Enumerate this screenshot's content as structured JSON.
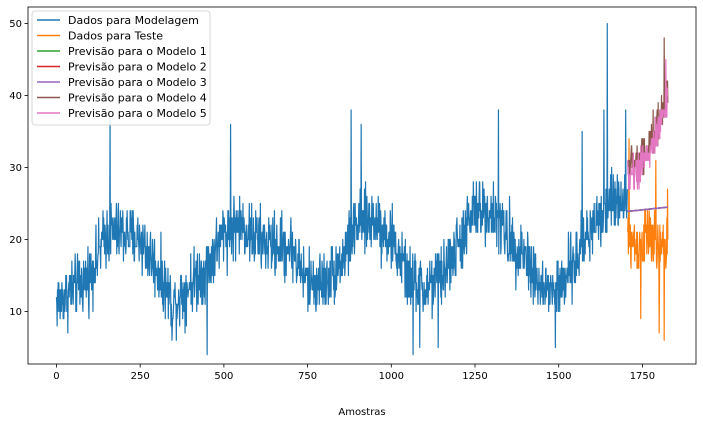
{
  "chart_data": {
    "type": "line",
    "title": "",
    "xlabel": "Amostras",
    "ylabel": "",
    "xlim": [
      -85,
      1910
    ],
    "ylim": [
      2.7,
      52.3
    ],
    "xticks": [
      0,
      250,
      500,
      750,
      1000,
      1250,
      1500,
      1750
    ],
    "yticks": [
      10,
      20,
      30,
      40,
      50
    ],
    "grid": false,
    "legend_position": "top-left",
    "series": [
      {
        "name": "Dados para Modelagem",
        "color": "#1f77b4",
        "x_range": [
          0,
          1705
        ],
        "trend_x": [
          0,
          100,
          150,
          200,
          250,
          300,
          350,
          400,
          450,
          500,
          550,
          600,
          650,
          700,
          750,
          800,
          850,
          900,
          950,
          1000,
          1050,
          1100,
          1150,
          1200,
          1250,
          1300,
          1350,
          1400,
          1450,
          1500,
          1550,
          1600,
          1650,
          1705
        ],
        "trend_y": [
          11,
          15,
          21,
          21,
          20,
          16,
          11,
          14,
          16,
          21,
          22,
          20,
          19,
          19,
          14,
          14,
          17,
          22,
          23,
          20,
          15,
          13,
          15,
          19,
          24,
          24,
          20,
          18,
          13,
          13,
          17,
          22,
          25,
          26
        ],
        "spread": 6.5,
        "spikes": [
          [
            5,
            14
          ],
          [
            160,
            37
          ],
          [
            345,
            6
          ],
          [
            450,
            4
          ],
          [
            520,
            36
          ],
          [
            880,
            38
          ],
          [
            910,
            36
          ],
          [
            1065,
            4
          ],
          [
            1085,
            5
          ],
          [
            1140,
            5
          ],
          [
            1320,
            38
          ],
          [
            1490,
            5
          ],
          [
            1570,
            35
          ],
          [
            1635,
            38
          ],
          [
            1645,
            50
          ],
          [
            1700,
            38
          ]
        ]
      },
      {
        "name": "Dados para Teste",
        "color": "#ff7f0e",
        "x_range": [
          1706,
          1826
        ],
        "trend_x": [
          1706,
          1740,
          1770,
          1800,
          1826
        ],
        "trend_y": [
          20,
          19,
          21,
          18,
          20
        ],
        "spread": 6.0,
        "spikes": [
          [
            1710,
            34
          ],
          [
            1745,
            9
          ],
          [
            1790,
            31
          ],
          [
            1800,
            7
          ],
          [
            1815,
            6
          ],
          [
            1825,
            27
          ]
        ]
      },
      {
        "name": "Previsão para o Modelo 1",
        "color": "#2ca02c",
        "x": [
          1706,
          1826
        ],
        "y": [
          23.9,
          24.5
        ]
      },
      {
        "name": "Previsão para o Modelo 2",
        "color": "#d62728",
        "x": [
          1706,
          1826
        ],
        "y": [
          23.9,
          24.5
        ]
      },
      {
        "name": "Previsão para o Modelo 3",
        "color": "#9467bd",
        "x": [
          1706,
          1826
        ],
        "y": [
          23.9,
          24.5
        ]
      },
      {
        "name": "Previsão para o Modelo 4",
        "color": "#8c564b",
        "x_range": [
          1706,
          1826
        ],
        "trend_x": [
          1706,
          1740,
          1770,
          1800,
          1826
        ],
        "trend_y": [
          30,
          31,
          33,
          36,
          41
        ],
        "spread": 4.0,
        "spikes": [
          [
            1815,
            48
          ]
        ]
      },
      {
        "name": "Previsão para o Modelo 5",
        "color": "#e377c2",
        "x_range": [
          1706,
          1826
        ],
        "trend_x": [
          1706,
          1740,
          1770,
          1800,
          1826
        ],
        "trend_y": [
          29,
          30,
          32,
          35,
          40
        ],
        "spread": 4.0,
        "spikes": [
          [
            1820,
            45
          ]
        ]
      }
    ]
  }
}
